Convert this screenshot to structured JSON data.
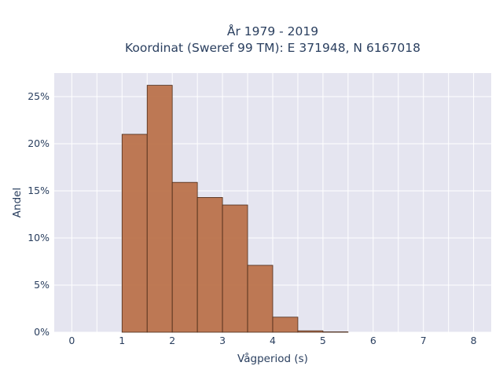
{
  "chart_data": {
    "type": "bar",
    "title_lines": [
      "År 1979 - 2019",
      "Koordinat (Sweref 99 TM): E 371948, N 6167018"
    ],
    "xlabel": "Vågperiod (s)",
    "ylabel": "Andel",
    "xlim": [
      -0.35,
      8.35
    ],
    "ylim": [
      0,
      0.275
    ],
    "x_ticks": [
      0,
      1,
      2,
      3,
      4,
      5,
      6,
      7,
      8
    ],
    "y_ticks": [
      0,
      0.05,
      0.1,
      0.15,
      0.2,
      0.25
    ],
    "y_tick_labels": [
      "0%",
      "5%",
      "10%",
      "15%",
      "20%",
      "25%"
    ],
    "bin_width": 0.5,
    "bins": [
      {
        "x0": 1.0,
        "x1": 1.5,
        "value": 0.21
      },
      {
        "x0": 1.5,
        "x1": 2.0,
        "value": 0.262
      },
      {
        "x0": 2.0,
        "x1": 2.5,
        "value": 0.159
      },
      {
        "x0": 2.5,
        "x1": 3.0,
        "value": 0.143
      },
      {
        "x0": 3.0,
        "x1": 3.5,
        "value": 0.135
      },
      {
        "x0": 3.5,
        "x1": 4.0,
        "value": 0.071
      },
      {
        "x0": 4.0,
        "x1": 4.5,
        "value": 0.016
      },
      {
        "x0": 4.5,
        "x1": 5.0,
        "value": 0.0015
      },
      {
        "x0": 5.0,
        "x1": 5.5,
        "value": 0.0004
      }
    ],
    "grid": true,
    "colors": {
      "bar": "#b86b43",
      "bar_edge": "#4a2a18",
      "plot_bg": "#e5e5f0",
      "grid": "#ffffff",
      "text": "#2a3f5f"
    }
  }
}
